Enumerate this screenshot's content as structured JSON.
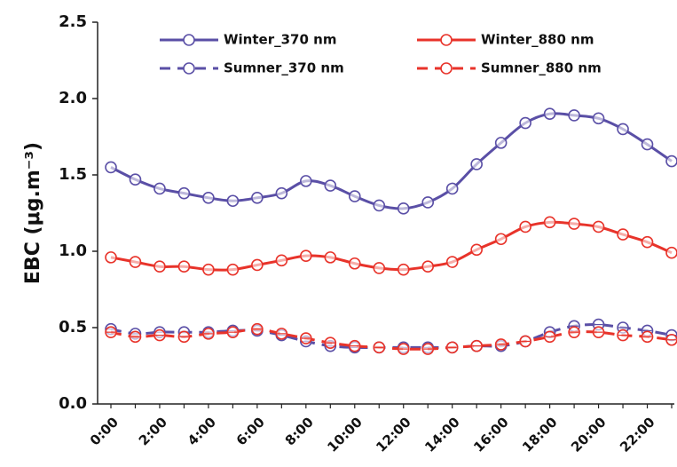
{
  "chart_data": {
    "type": "line",
    "y_label": "EBC (μg.m⁻³)",
    "categories": [
      "0:00",
      null,
      "2:00",
      null,
      "4:00",
      null,
      "6:00",
      null,
      "8:00",
      null,
      "10:00",
      null,
      "12:00",
      null,
      "14:00",
      null,
      "16:00",
      null,
      "18:00",
      null,
      "20:00",
      null,
      "22:00",
      null
    ],
    "series": [
      {
        "name": "Winter_370 nm",
        "color": "#5a4fa6",
        "dashed": false,
        "values": [
          1.55,
          1.47,
          1.41,
          1.38,
          1.35,
          1.33,
          1.35,
          1.38,
          1.46,
          1.43,
          1.36,
          1.3,
          1.28,
          1.32,
          1.41,
          1.57,
          1.71,
          1.84,
          1.9,
          1.89,
          1.87,
          1.8,
          1.7,
          1.59
        ]
      },
      {
        "name": "Winter_880 nm",
        "color": "#e8332a",
        "dashed": false,
        "values": [
          0.96,
          0.93,
          0.9,
          0.9,
          0.88,
          0.88,
          0.91,
          0.94,
          0.97,
          0.96,
          0.92,
          0.89,
          0.88,
          0.9,
          0.93,
          1.01,
          1.08,
          1.16,
          1.19,
          1.18,
          1.16,
          1.11,
          1.06,
          0.99
        ]
      },
      {
        "name": "Sumner_370 nm",
        "color": "#5a4fa6",
        "dashed": true,
        "values": [
          0.49,
          0.46,
          0.47,
          0.47,
          0.47,
          0.48,
          0.48,
          0.45,
          0.41,
          0.38,
          0.37,
          0.37,
          0.37,
          0.37,
          0.37,
          0.38,
          0.38,
          0.41,
          0.47,
          0.51,
          0.52,
          0.5,
          0.48,
          0.45
        ]
      },
      {
        "name": "Sumner_880 nm",
        "color": "#e8332a",
        "dashed": true,
        "values": [
          0.47,
          0.44,
          0.45,
          0.44,
          0.46,
          0.47,
          0.49,
          0.46,
          0.43,
          0.4,
          0.38,
          0.37,
          0.36,
          0.36,
          0.37,
          0.38,
          0.39,
          0.41,
          0.44,
          0.47,
          0.47,
          0.45,
          0.44,
          0.42
        ]
      }
    ],
    "ylim": [
      0,
      2.5
    ],
    "yticks": [
      {
        "value": 0,
        "label": "0.0"
      },
      0.5,
      {
        "value": 1,
        "label": "1.0"
      },
      1.5,
      {
        "value": 2,
        "label": "2.0"
      },
      2.5
    ],
    "grid": false
  }
}
